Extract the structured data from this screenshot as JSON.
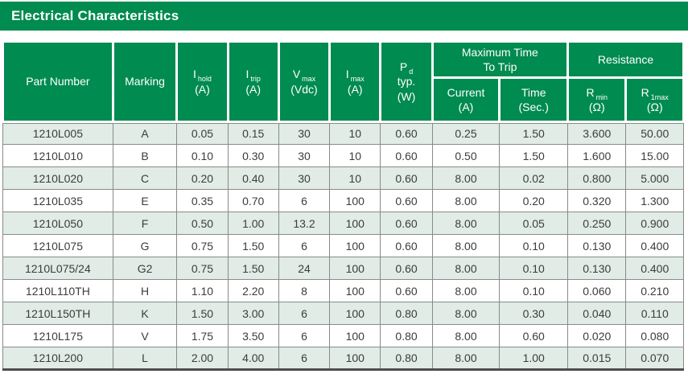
{
  "title_bar": {
    "title": "Electrical Characteristics"
  },
  "colors": {
    "brand_green": "#008B50",
    "row_stripe": "#E0ECE5",
    "grid_line": "#8A8A8A",
    "bottom_rule": "#4D4D4D",
    "body_text": "#3C3C3C"
  },
  "table": {
    "header": {
      "part_number": "Part Number",
      "marking": "Marking",
      "i_hold": {
        "sym": "I",
        "sub": "hold",
        "unit": "(A)"
      },
      "i_trip": {
        "sym": "I",
        "sub": "trip",
        "unit": "(A)"
      },
      "v_max": {
        "sym": "V",
        "sub": "max",
        "unit": "(Vdc)"
      },
      "i_max": {
        "sym": "I",
        "sub": "max",
        "unit": "(A)"
      },
      "p_d": {
        "sym": "P",
        "sub": "d",
        "line2": "typ.",
        "unit": "(W)"
      },
      "max_time_to_trip": {
        "line1": "Maximum Time",
        "line2": "To Trip"
      },
      "trip_current": {
        "label": "Current",
        "unit": "(A)"
      },
      "trip_time": {
        "label": "Time",
        "unit": "(Sec.)"
      },
      "resistance": "Resistance",
      "r_min": {
        "sym": "R",
        "sub": "min",
        "unit": "(Ω)"
      },
      "r_1max": {
        "sym": "R",
        "sub": "1max",
        "unit": "(Ω)"
      }
    },
    "rows": [
      [
        "1210L005",
        "A",
        "0.05",
        "0.15",
        "30",
        "10",
        "0.60",
        "0.25",
        "1.50",
        "3.600",
        "50.00"
      ],
      [
        "1210L010",
        "B",
        "0.10",
        "0.30",
        "30",
        "10",
        "0.60",
        "0.50",
        "1.50",
        "1.600",
        "15.00"
      ],
      [
        "1210L020",
        "C",
        "0.20",
        "0.40",
        "30",
        "10",
        "0.60",
        "8.00",
        "0.02",
        "0.800",
        "5.000"
      ],
      [
        "1210L035",
        "E",
        "0.35",
        "0.70",
        "6",
        "100",
        "0.60",
        "8.00",
        "0.20",
        "0.320",
        "1.300"
      ],
      [
        "1210L050",
        "F",
        "0.50",
        "1.00",
        "13.2",
        "100",
        "0.60",
        "8.00",
        "0.05",
        "0.250",
        "0.900"
      ],
      [
        "1210L075",
        "G",
        "0.75",
        "1.50",
        "6",
        "100",
        "0.60",
        "8.00",
        "0.10",
        "0.130",
        "0.400"
      ],
      [
        "1210L075/24",
        "G2",
        "0.75",
        "1.50",
        "24",
        "100",
        "0.60",
        "8.00",
        "0.10",
        "0.130",
        "0.400"
      ],
      [
        "1210L110TH",
        "H",
        "1.10",
        "2.20",
        "8",
        "100",
        "0.60",
        "8.00",
        "0.10",
        "0.060",
        "0.210"
      ],
      [
        "1210L150TH",
        "K",
        "1.50",
        "3.00",
        "6",
        "100",
        "0.80",
        "8.00",
        "0.30",
        "0.040",
        "0.110"
      ],
      [
        "1210L175",
        "V",
        "1.75",
        "3.50",
        "6",
        "100",
        "0.80",
        "8.00",
        "0.60",
        "0.020",
        "0.080"
      ],
      [
        "1210L200",
        "L",
        "2.00",
        "4.00",
        "6",
        "100",
        "0.80",
        "8.00",
        "1.00",
        "0.015",
        "0.070"
      ]
    ]
  }
}
